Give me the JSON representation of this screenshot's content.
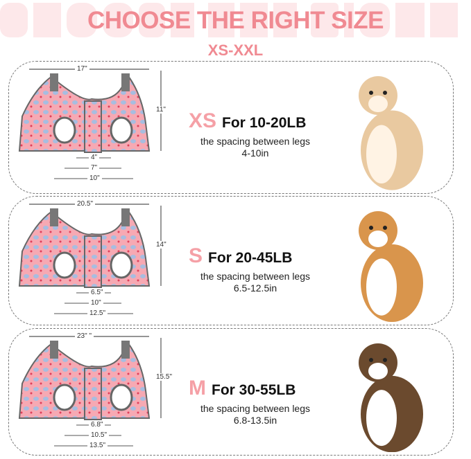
{
  "header": {
    "background_text": "CHOOSE THE RIGHT",
    "title": "CHOOSE THE RIGHT SIZE",
    "subtitle": "XS-XXL"
  },
  "colors": {
    "accent": "#f08a92",
    "fabric": "#f6a9b3",
    "spots": "#a7bde0",
    "trim": "#666666"
  },
  "sizes": [
    {
      "code": "XS",
      "weight": "For 10-20LB",
      "spacing_label": "the spacing between legs",
      "spacing": "4-10in",
      "width": "17\"",
      "height": "11\"",
      "inner": "4\"",
      "mid": "7\"",
      "outer": "10\"",
      "pet": "cat"
    },
    {
      "code": "S",
      "weight": "For 20-45LB",
      "spacing_label": "the spacing between legs",
      "spacing": "6.5-12.5in",
      "width": "20.5\"",
      "height": "14\"",
      "inner": "6.5\"",
      "mid": "10\"",
      "outer": "12.5\"",
      "pet": "corgi"
    },
    {
      "code": "M",
      "weight": "For 30-55LB",
      "spacing_label": "the spacing between legs",
      "spacing": "6.8-13.5in",
      "width": "23\" \"",
      "height": "15.5\"",
      "inner": "6.8\"",
      "mid": "10.5\"",
      "outer": "13.5\"",
      "pet": "beagle"
    }
  ]
}
